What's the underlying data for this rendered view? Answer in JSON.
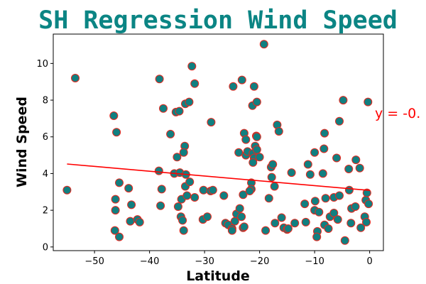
{
  "chart_data": {
    "type": "scatter",
    "title": "SH Regression Wind Speed",
    "xlabel": "Latitude",
    "ylabel": "Wind Speed",
    "xlim": [
      -57.5,
      2.5
    ],
    "ylim": [
      -0.2,
      11.6
    ],
    "xticks": [
      -50,
      -40,
      -30,
      -20,
      -10,
      0
    ],
    "xtick_labels": [
      "−50",
      "−40",
      "−30",
      "−20",
      "−10",
      "0"
    ],
    "yticks": [
      0,
      2,
      4,
      6,
      8,
      10
    ],
    "ytick_labels": [
      "0",
      "2",
      "4",
      "6",
      "8",
      "10"
    ],
    "grid": false,
    "marker_fill": "#117f80",
    "marker_edge": "#e8261c",
    "regression_color": "#ff0000",
    "equation_text": "y = -0.",
    "regression_line": {
      "x": [
        -55,
        0
      ],
      "y": [
        4.52,
        3.08
      ]
    },
    "points": [
      {
        "x": -55,
        "y": 3.1
      },
      {
        "x": -53.5,
        "y": 9.2
      },
      {
        "x": -46.5,
        "y": 7.15
      },
      {
        "x": -46,
        "y": 6.25
      },
      {
        "x": -46.2,
        "y": 2.6
      },
      {
        "x": -46.2,
        "y": 2.0
      },
      {
        "x": -46.3,
        "y": 0.9
      },
      {
        "x": -45.5,
        "y": 0.55
      },
      {
        "x": -45.5,
        "y": 3.5
      },
      {
        "x": -43.8,
        "y": 3.2
      },
      {
        "x": -43.3,
        "y": 2.3
      },
      {
        "x": -43.5,
        "y": 1.4
      },
      {
        "x": -42.2,
        "y": 1.5
      },
      {
        "x": -41.8,
        "y": 1.35
      },
      {
        "x": -38.2,
        "y": 9.15
      },
      {
        "x": -37.5,
        "y": 7.55
      },
      {
        "x": -38.3,
        "y": 4.15
      },
      {
        "x": -37.8,
        "y": 3.15
      },
      {
        "x": -38,
        "y": 2.25
      },
      {
        "x": -36.2,
        "y": 6.15
      },
      {
        "x": -35.2,
        "y": 7.35
      },
      {
        "x": -34.6,
        "y": 7.4
      },
      {
        "x": -35.5,
        "y": 4.0
      },
      {
        "x": -35.0,
        "y": 4.9
      },
      {
        "x": -34.5,
        "y": 4.05
      },
      {
        "x": -34.8,
        "y": 2.2
      },
      {
        "x": -34.2,
        "y": 2.6
      },
      {
        "x": -34.3,
        "y": 1.65
      },
      {
        "x": -34.0,
        "y": 1.45
      },
      {
        "x": -33.5,
        "y": 7.8
      },
      {
        "x": -33.6,
        "y": 5.5
      },
      {
        "x": -33.8,
        "y": 5.15
      },
      {
        "x": -33.4,
        "y": 3.95
      },
      {
        "x": -33.5,
        "y": 3.3
      },
      {
        "x": -33.2,
        "y": 2.8
      },
      {
        "x": -33.8,
        "y": 0.9
      },
      {
        "x": -32.8,
        "y": 7.9
      },
      {
        "x": -32.7,
        "y": 3.55
      },
      {
        "x": -32.3,
        "y": 9.85
      },
      {
        "x": -31.8,
        "y": 8.9
      },
      {
        "x": -31.8,
        "y": 2.7
      },
      {
        "x": -30.2,
        "y": 3.1
      },
      {
        "x": -30.3,
        "y": 1.5
      },
      {
        "x": -29.5,
        "y": 1.65
      },
      {
        "x": -28.8,
        "y": 6.8
      },
      {
        "x": -28.9,
        "y": 3.05
      },
      {
        "x": -28.5,
        "y": 3.1
      },
      {
        "x": -26.5,
        "y": 2.8
      },
      {
        "x": -26.2,
        "y": 1.3
      },
      {
        "x": -25.7,
        "y": 1.2
      },
      {
        "x": -24.8,
        "y": 8.75
      },
      {
        "x": -25.0,
        "y": 1.0
      },
      {
        "x": -25.0,
        "y": 0.9
      },
      {
        "x": -24.5,
        "y": 1.4
      },
      {
        "x": -24.2,
        "y": 1.8
      },
      {
        "x": -23.8,
        "y": 5.15
      },
      {
        "x": -23.6,
        "y": 2.1
      },
      {
        "x": -23.3,
        "y": 1.65
      },
      {
        "x": -23.0,
        "y": 2.85
      },
      {
        "x": -23.0,
        "y": 1.05
      },
      {
        "x": -22.8,
        "y": 1.1
      },
      {
        "x": -23.2,
        "y": 9.1
      },
      {
        "x": -22.8,
        "y": 6.2
      },
      {
        "x": -22.5,
        "y": 5.85
      },
      {
        "x": -22.5,
        "y": 5.0
      },
      {
        "x": -22.2,
        "y": 5.2
      },
      {
        "x": -21.3,
        "y": 7.7
      },
      {
        "x": -21.5,
        "y": 3.5
      },
      {
        "x": -21.5,
        "y": 3.15
      },
      {
        "x": -21.8,
        "y": 3.05
      },
      {
        "x": -21.0,
        "y": 8.75
      },
      {
        "x": -21.2,
        "y": 5.1
      },
      {
        "x": -21.0,
        "y": 4.85
      },
      {
        "x": -21.2,
        "y": 4.6
      },
      {
        "x": -20.5,
        "y": 7.9
      },
      {
        "x": -20.6,
        "y": 6.05
      },
      {
        "x": -20.5,
        "y": 6.0
      },
      {
        "x": -20.8,
        "y": 5.5
      },
      {
        "x": -20.5,
        "y": 5.3
      },
      {
        "x": -20.0,
        "y": 4.9
      },
      {
        "x": -19.2,
        "y": 11.05
      },
      {
        "x": -18.9,
        "y": 0.9
      },
      {
        "x": -18.3,
        "y": 2.65
      },
      {
        "x": -17.9,
        "y": 4.35
      },
      {
        "x": -17.6,
        "y": 4.5
      },
      {
        "x": -17.8,
        "y": 3.8
      },
      {
        "x": -17.3,
        "y": 3.3
      },
      {
        "x": -17.2,
        "y": 1.3
      },
      {
        "x": -16.8,
        "y": 6.65
      },
      {
        "x": -16.5,
        "y": 6.3
      },
      {
        "x": -16.0,
        "y": 1.6
      },
      {
        "x": -15.6,
        "y": 1.05
      },
      {
        "x": -15.0,
        "y": 0.95
      },
      {
        "x": -14.8,
        "y": 1.0
      },
      {
        "x": -14.2,
        "y": 4.05
      },
      {
        "x": -13.6,
        "y": 1.3
      },
      {
        "x": -11.8,
        "y": 2.35
      },
      {
        "x": -11.6,
        "y": 1.35
      },
      {
        "x": -11.2,
        "y": 4.5
      },
      {
        "x": -10.8,
        "y": 3.95
      },
      {
        "x": -10.0,
        "y": 5.15
      },
      {
        "x": -9.9,
        "y": 2.5
      },
      {
        "x": -10.0,
        "y": 2.0
      },
      {
        "x": -9.5,
        "y": 0.85
      },
      {
        "x": -9.6,
        "y": 0.55
      },
      {
        "x": -9.2,
        "y": 1.9
      },
      {
        "x": -8.5,
        "y": 4.0
      },
      {
        "x": -8.2,
        "y": 6.2
      },
      {
        "x": -8.3,
        "y": 5.35
      },
      {
        "x": -8.0,
        "y": 2.65
      },
      {
        "x": -8.2,
        "y": 1.2
      },
      {
        "x": -7.5,
        "y": 1.0
      },
      {
        "x": -7.2,
        "y": 1.65
      },
      {
        "x": -6.5,
        "y": 2.7
      },
      {
        "x": -6.5,
        "y": 1.85
      },
      {
        "x": -6.0,
        "y": 4.85
      },
      {
        "x": -5.8,
        "y": 1.5
      },
      {
        "x": -5.5,
        "y": 6.85
      },
      {
        "x": -5.5,
        "y": 2.8
      },
      {
        "x": -4.8,
        "y": 8.0
      },
      {
        "x": -4.5,
        "y": 0.35
      },
      {
        "x": -3.8,
        "y": 4.25
      },
      {
        "x": -3.7,
        "y": 3.1
      },
      {
        "x": -3.3,
        "y": 2.1
      },
      {
        "x": -3.4,
        "y": 1.3
      },
      {
        "x": -2.5,
        "y": 4.75
      },
      {
        "x": -2.6,
        "y": 2.2
      },
      {
        "x": -1.8,
        "y": 4.3
      },
      {
        "x": -1.6,
        "y": 1.05
      },
      {
        "x": -0.9,
        "y": 1.65
      },
      {
        "x": -0.7,
        "y": 2.55
      },
      {
        "x": -0.6,
        "y": 1.35
      },
      {
        "x": -0.5,
        "y": 2.95
      },
      {
        "x": -0.3,
        "y": 7.9
      },
      {
        "x": -0.2,
        "y": 2.35
      }
    ]
  }
}
